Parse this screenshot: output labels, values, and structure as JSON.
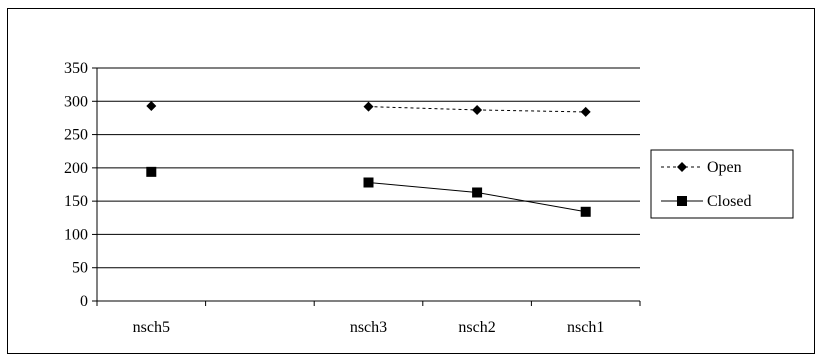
{
  "chart_data": {
    "type": "line",
    "title": "",
    "xlabel": "",
    "ylabel": "",
    "categories": [
      "nsch5",
      "",
      "nsch3",
      "nsch2",
      "nsch1"
    ],
    "ylim": [
      0,
      350
    ],
    "yticks": [
      0,
      50,
      100,
      150,
      200,
      250,
      300,
      350
    ],
    "grid": true,
    "legend_position": "right",
    "series": [
      {
        "name": "Open",
        "values": [
          293,
          null,
          292,
          287,
          284
        ],
        "line_style": "dotted",
        "marker": "diamond",
        "color": "#000000"
      },
      {
        "name": "Closed",
        "values": [
          194,
          null,
          178,
          163,
          134
        ],
        "line_style": "solid",
        "marker": "square",
        "color": "#000000"
      }
    ]
  }
}
